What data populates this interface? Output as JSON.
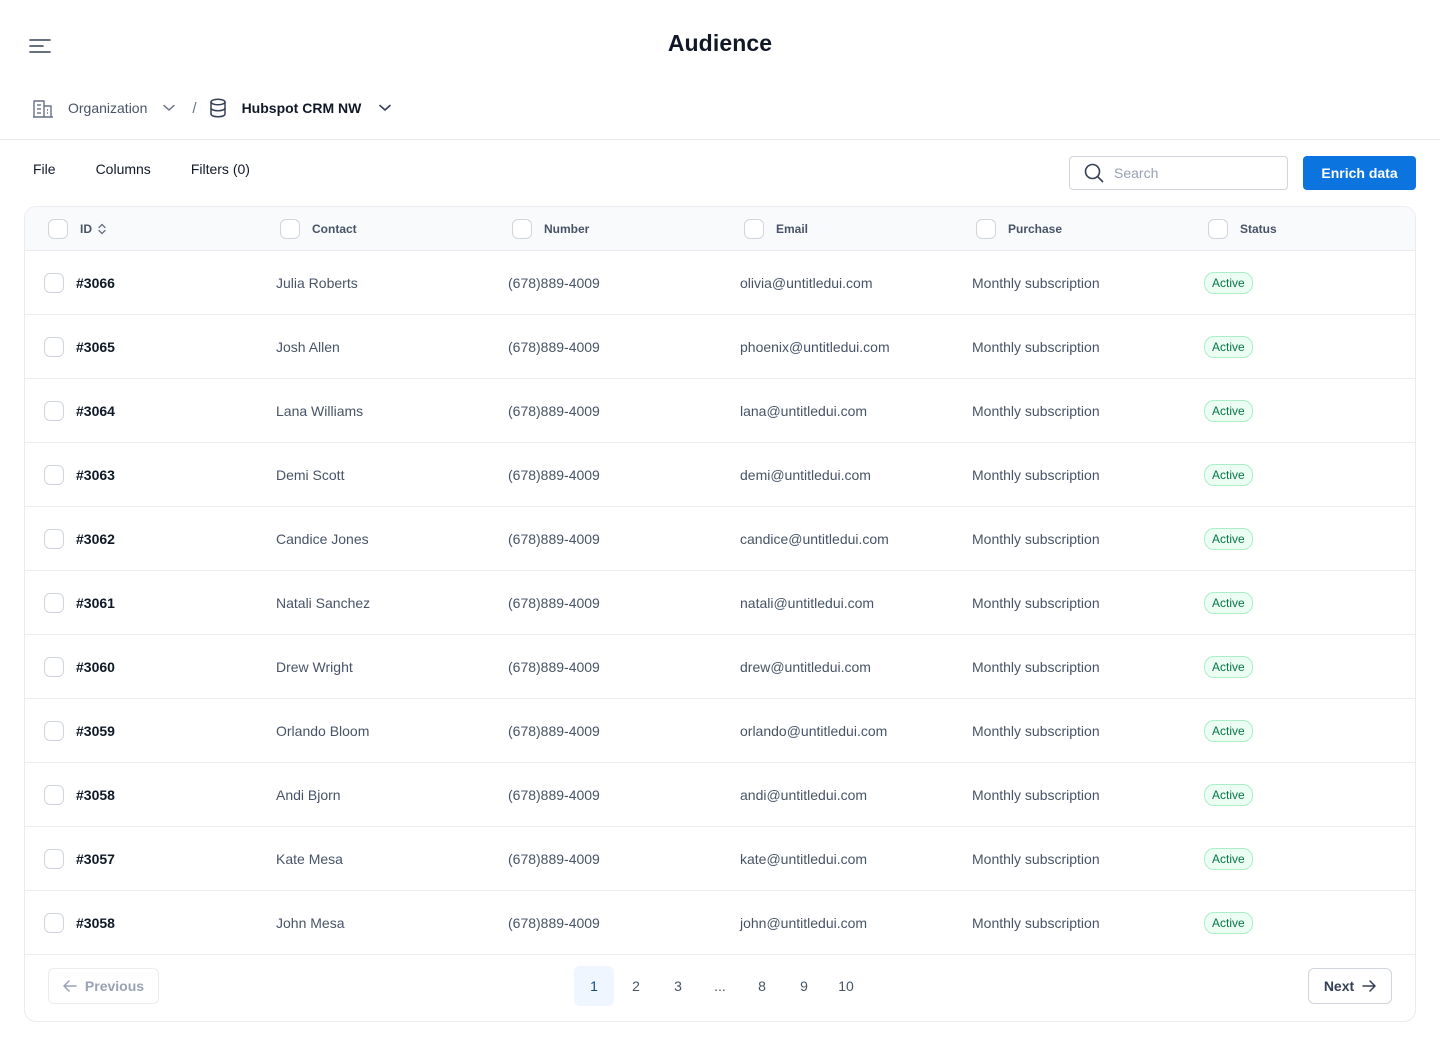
{
  "header": {
    "title": "Audience",
    "menu_icon": "menu-icon"
  },
  "breadcrumb": {
    "organization": {
      "label": "Organization",
      "icon": "building-icon"
    },
    "separator": "/",
    "database": {
      "label": "Hubspot CRM NW",
      "icon": "database-icon"
    }
  },
  "toolbar": {
    "tabs": [
      "File",
      "Columns",
      "Filters (0)"
    ],
    "search_placeholder": "Search",
    "enrich_label": "Enrich data"
  },
  "table": {
    "columns": [
      "ID",
      "Contact",
      "Number",
      "Email",
      "Purchase",
      "Status"
    ],
    "rows": [
      {
        "id": "#3066",
        "contact": "Julia Roberts",
        "number": "(678)889-4009",
        "email": "olivia@untitledui.com",
        "purchase": "Monthly subscription",
        "status": "Active"
      },
      {
        "id": "#3065",
        "contact": "Josh Allen",
        "number": "(678)889-4009",
        "email": "phoenix@untitledui.com",
        "purchase": "Monthly subscription",
        "status": "Active"
      },
      {
        "id": "#3064",
        "contact": "Lana Williams",
        "number": "(678)889-4009",
        "email": "lana@untitledui.com",
        "purchase": "Monthly subscription",
        "status": "Active"
      },
      {
        "id": "#3063",
        "contact": "Demi Scott",
        "number": "(678)889-4009",
        "email": "demi@untitledui.com",
        "purchase": "Monthly subscription",
        "status": "Active"
      },
      {
        "id": "#3062",
        "contact": "Candice Jones",
        "number": "(678)889-4009",
        "email": "candice@untitledui.com",
        "purchase": "Monthly subscription",
        "status": "Active"
      },
      {
        "id": "#3061",
        "contact": "Natali Sanchez",
        "number": "(678)889-4009",
        "email": "natali@untitledui.com",
        "purchase": "Monthly subscription",
        "status": "Active"
      },
      {
        "id": "#3060",
        "contact": "Drew Wright",
        "number": "(678)889-4009",
        "email": "drew@untitledui.com",
        "purchase": "Monthly subscription",
        "status": "Active"
      },
      {
        "id": "#3059",
        "contact": "Orlando Bloom",
        "number": "(678)889-4009",
        "email": "orlando@untitledui.com",
        "purchase": "Monthly subscription",
        "status": "Active"
      },
      {
        "id": "#3058",
        "contact": "Andi Bjorn",
        "number": "(678)889-4009",
        "email": "andi@untitledui.com",
        "purchase": "Monthly subscription",
        "status": "Active"
      },
      {
        "id": "#3057",
        "contact": "Kate Mesa",
        "number": "(678)889-4009",
        "email": "kate@untitledui.com",
        "purchase": "Monthly subscription",
        "status": "Active"
      },
      {
        "id": "#3058",
        "contact": "John Mesa",
        "number": "(678)889-4009",
        "email": "john@untitledui.com",
        "purchase": "Monthly subscription",
        "status": "Active"
      }
    ]
  },
  "pagination": {
    "previous_label": "Previous",
    "next_label": "Next",
    "pages": [
      "1",
      "2",
      "3",
      "...",
      "8",
      "9",
      "10"
    ],
    "current_page": "1"
  },
  "colors": {
    "accent": "#0b74de",
    "status_active_text": "#067647",
    "status_active_bg": "#ecfdf3",
    "status_active_border": "#abefc6"
  }
}
